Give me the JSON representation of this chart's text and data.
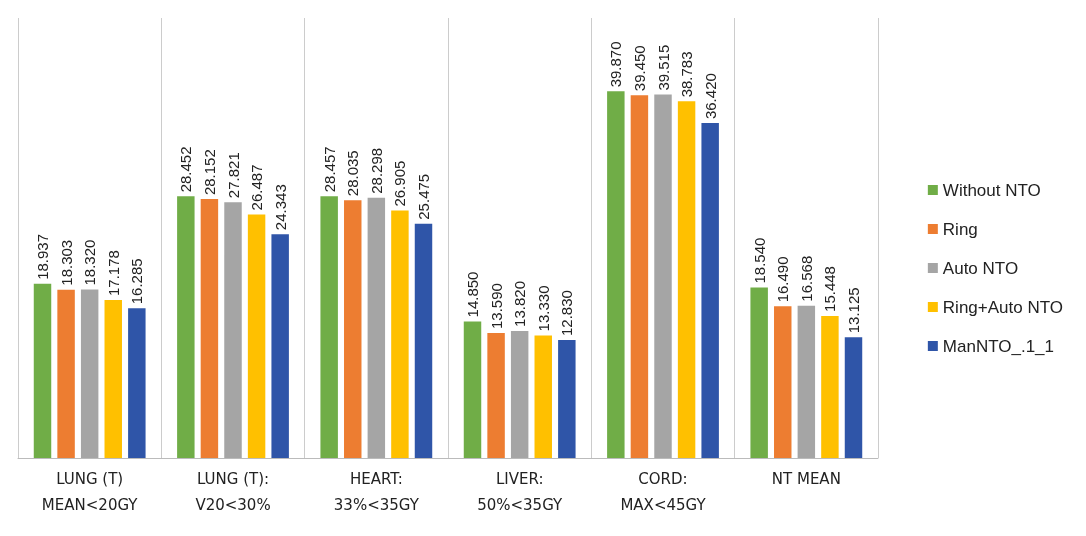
{
  "chart_data": {
    "type": "bar",
    "categories": [
      "LUNG (T)\nMEAN<20GY",
      "LUNG (T):\nV20<30%",
      "HEART:\n33%<35GY",
      "LIVER:\n50%<35GY",
      "CORD:\nMAX<45GY",
      "NT MEAN"
    ],
    "series": [
      {
        "name": "Without NTO",
        "color": "#70ad47",
        "values": [
          18.937,
          28.452,
          28.457,
          14.85,
          39.87,
          18.54
        ],
        "value_labels": [
          "18.937",
          "28.452",
          "28.457",
          "14.850",
          "39.870",
          "18.540"
        ]
      },
      {
        "name": "Ring",
        "color": "#ed7d31",
        "values": [
          18.303,
          28.152,
          28.035,
          13.59,
          39.45,
          16.49
        ],
        "value_labels": [
          "18.303",
          "28.152",
          "28.035",
          "13.590",
          "39.450",
          "16.490"
        ]
      },
      {
        "name": "Auto NTO",
        "color": "#a5a5a5",
        "values": [
          18.32,
          27.821,
          28.298,
          13.82,
          39.515,
          16.568
        ],
        "value_labels": [
          "18.320",
          "27.821",
          "28.298",
          "13.820",
          "39.515",
          "16.568"
        ]
      },
      {
        "name": "Ring+Auto NTO",
        "color": "#ffc000",
        "values": [
          17.178,
          26.487,
          26.905,
          13.33,
          38.783,
          15.448
        ],
        "value_labels": [
          "17.178",
          "26.487",
          "26.905",
          "13.330",
          "38.783",
          "15.448"
        ]
      },
      {
        "name": "ManNTO_.1_1",
        "color": "#2f55a8",
        "values": [
          16.285,
          24.343,
          25.475,
          12.83,
          36.42,
          13.125
        ],
        "value_labels": [
          "16.285",
          "24.343",
          "25.475",
          "12.830",
          "36.420",
          "13.125"
        ]
      }
    ],
    "grid": "x",
    "legend": "right"
  }
}
